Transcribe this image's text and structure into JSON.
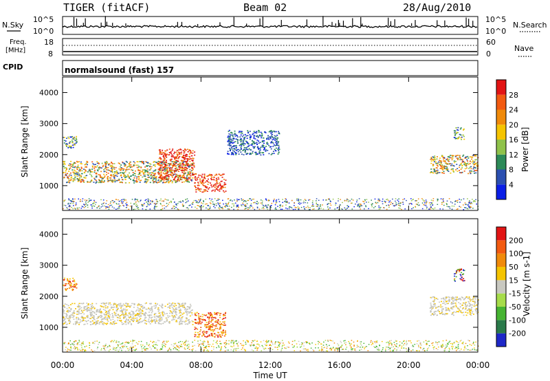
{
  "header": {
    "radar": "TIGER (fitACF)",
    "beam": "Beam 02",
    "date": "28/Aug/2010"
  },
  "strip_panels": {
    "nsky": {
      "label": "N.Sky",
      "ticks_left": [
        "10^5",
        "10^0"
      ],
      "ticks_right": [
        "10^5",
        "10^0"
      ],
      "right_label": "N.Search"
    },
    "freq": {
      "label_line1": "Freq.",
      "label_line2": "[MHz]",
      "ticks_left": [
        "18",
        "8"
      ],
      "ticks_right": [
        "60",
        "0"
      ],
      "right_label": "Nave"
    },
    "cpid": {
      "label": "CPID",
      "text": "normalsound (fast) 157"
    }
  },
  "chart_data": [
    {
      "type": "heatmap",
      "title": "",
      "ylabel": "Slant Range [km]",
      "xlabel": "",
      "ylim": [
        200,
        4500
      ],
      "yticks": [
        "1000",
        "2000",
        "3000",
        "4000"
      ],
      "colorbar_label": "Power [dB]",
      "colorbar_ticks": [
        "28",
        "24",
        "20",
        "16",
        "12",
        "8",
        "4"
      ],
      "colorbar_colors": [
        "#0a1ee6",
        "#2b4fb0",
        "#2d8a58",
        "#8fc24a",
        "#f5c400",
        "#f08a0a",
        "#f25a10",
        "#e21414"
      ],
      "regions": [
        {
          "t": [
            0.0,
            7.5
          ],
          "r": [
            1100,
            1800
          ],
          "level": "high"
        },
        {
          "t": [
            5.5,
            7.6
          ],
          "r": [
            1200,
            2200
          ],
          "level": "very-high"
        },
        {
          "t": [
            7.6,
            9.4
          ],
          "r": [
            800,
            1400
          ],
          "level": "very-high"
        },
        {
          "t": [
            0.0,
            0.8
          ],
          "r": [
            2200,
            2600
          ],
          "level": "medium"
        },
        {
          "t": [
            9.5,
            12.5
          ],
          "r": [
            2000,
            2800
          ],
          "level": "low"
        },
        {
          "t": [
            21.2,
            24.0
          ],
          "r": [
            1400,
            2000
          ],
          "level": "high"
        },
        {
          "t": [
            22.6,
            23.2
          ],
          "r": [
            2500,
            2900
          ],
          "level": "medium"
        }
      ]
    },
    {
      "type": "heatmap",
      "title": "",
      "ylabel": "Slant Range [km]",
      "xlabel": "Time UT",
      "ylim": [
        200,
        4500
      ],
      "yticks": [
        "1000",
        "2000",
        "3000",
        "4000"
      ],
      "xticks": [
        "00:00",
        "04:00",
        "08:00",
        "12:00",
        "16:00",
        "20:00",
        "00:00"
      ],
      "colorbar_label": "Velocity [m s-1]",
      "colorbar_ticks": [
        "200",
        "100",
        "50",
        "15",
        "-15",
        "-50",
        "-100",
        "-200"
      ],
      "colorbar_colors": [
        "#1e28c8",
        "#2a7a4a",
        "#46b432",
        "#a6dc4a",
        "#c8c8c0",
        "#f5c400",
        "#f08a0a",
        "#f25a10",
        "#e21414"
      ],
      "regions": [
        {
          "t": [
            0.0,
            7.5
          ],
          "r": [
            1100,
            1800
          ],
          "level": "near-zero"
        },
        {
          "t": [
            7.6,
            9.4
          ],
          "r": [
            700,
            1500
          ],
          "level": "negative"
        },
        {
          "t": [
            0.0,
            0.8
          ],
          "r": [
            2200,
            2600
          ],
          "level": "negative"
        },
        {
          "t": [
            21.2,
            24.0
          ],
          "r": [
            1400,
            2000
          ],
          "level": "near-zero"
        },
        {
          "t": [
            22.6,
            23.2
          ],
          "r": [
            2500,
            2900
          ],
          "level": "mixed"
        }
      ]
    }
  ]
}
